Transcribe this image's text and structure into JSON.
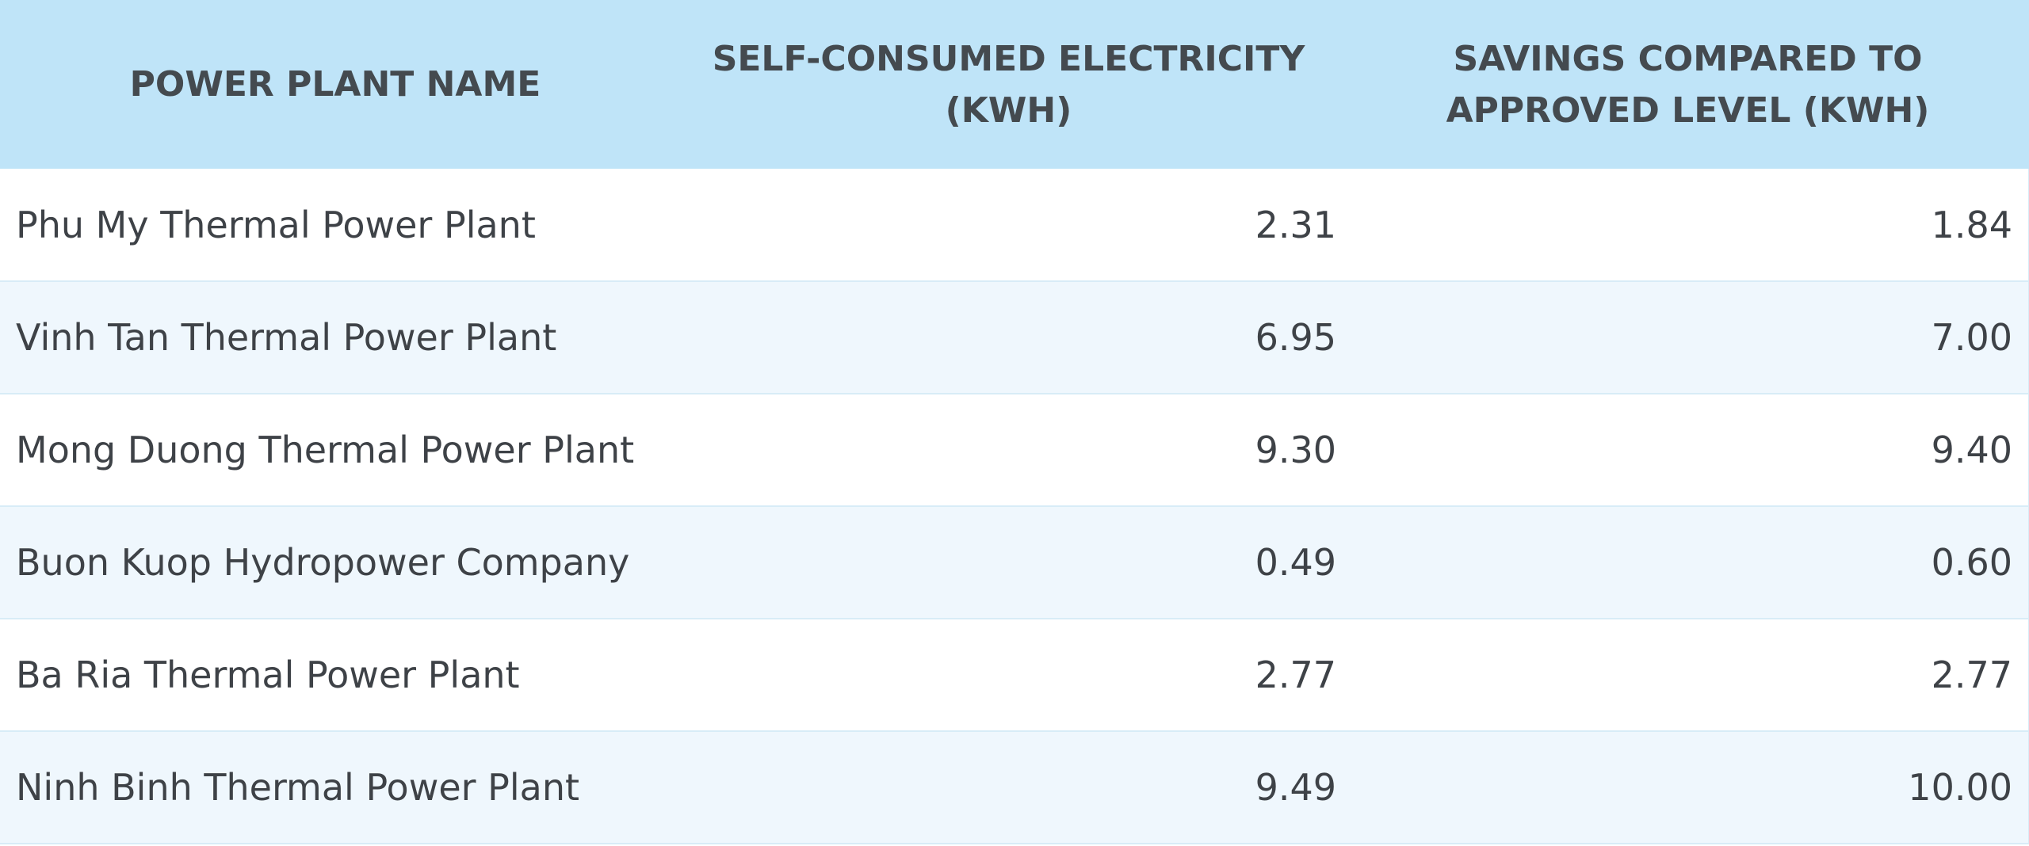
{
  "table": {
    "headers": [
      "POWER PLANT NAME",
      "SELF-CONSUMED ELECTRICITY (KWH)",
      "SAVINGS COMPARED TO APPROVED LEVEL (KWH)"
    ],
    "rows": [
      [
        "Phu My Thermal Power Plant",
        "2.31",
        "1.84"
      ],
      [
        "Vinh Tan Thermal Power Plant",
        "6.95",
        "7.00"
      ],
      [
        "Mong Duong Thermal Power Plant",
        "9.30",
        "9.40"
      ],
      [
        "Buon Kuop Hydropower Company",
        "0.49",
        "0.60"
      ],
      [
        "Ba Ria Thermal Power Plant",
        "2.77",
        "2.77"
      ],
      [
        "Ninh Binh Thermal Power Plant",
        "9.49",
        "10.00"
      ]
    ]
  },
  "colors": {
    "header_bg": "#bfe4f8",
    "header_text": "#444a4f",
    "row_alt_bg": "#eff7fd",
    "row_bg": "#ffffff",
    "body_text": "#3e4247",
    "border": "#d8ecf7"
  }
}
